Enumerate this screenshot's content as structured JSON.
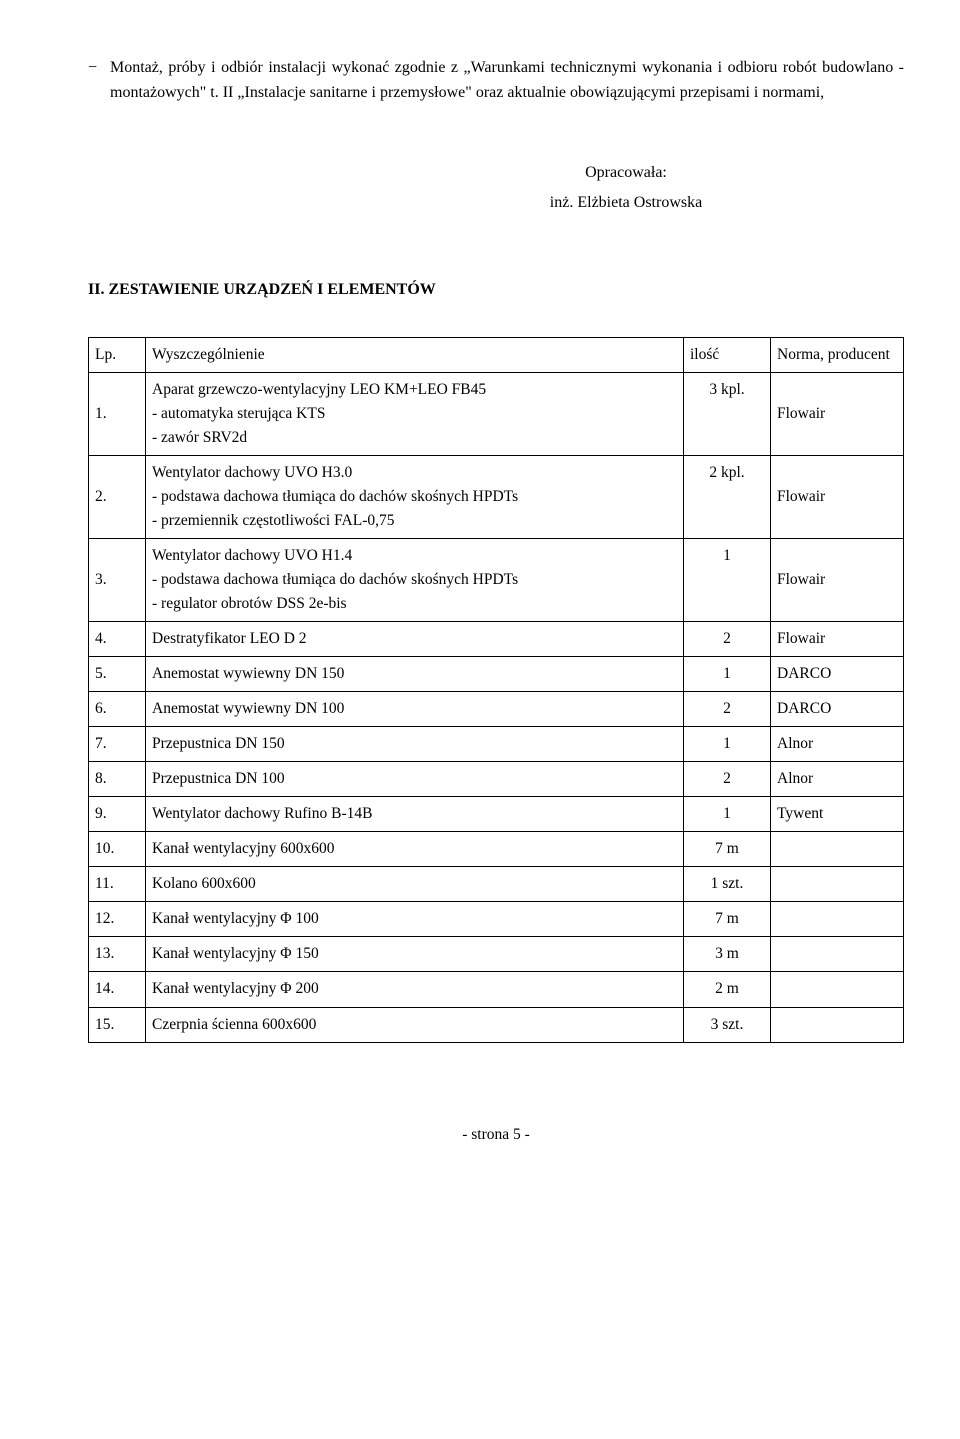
{
  "intro": {
    "text": "Montaż, próby i odbiór instalacji wykonać zgodnie z „Warunkami technicznymi wykonania i odbioru robót budowlano - montażowych\" t. II „Instalacje sanitarne i przemysłowe\" oraz aktualnie obowiązującymi przepisami i normami,"
  },
  "opracowala": {
    "label": "Opracowała:",
    "name": "inż. Elżbieta Ostrowska"
  },
  "section_title": "II. ZESTAWIENIE URZĄDZEŃ I ELEMENTÓW",
  "table": {
    "headers": {
      "lp": "Lp.",
      "wysz": "Wyszczególnienie",
      "ilosc": "ilość",
      "prod": "Norma,\nproducent"
    },
    "rows": [
      {
        "lp": "1.",
        "wysz": "Aparat grzewczo-wentylacyjny LEO KM+LEO FB45\n- automatyka sterująca KTS\n- zawór SRV2d",
        "ilosc": "3 kpl.",
        "prod": "\nFlowair"
      },
      {
        "lp": "2.",
        "wysz": "Wentylator  dachowy UVO H3.0\n- podstawa dachowa tłumiąca do dachów skośnych HPDTs\n- przemiennik częstotliwości FAL-0,75",
        "ilosc": "2 kpl.",
        "prod": "\nFlowair"
      },
      {
        "lp": "3.",
        "wysz": "Wentylator  dachowy UVO H1.4\n- podstawa dachowa tłumiąca do dachów skośnych HPDTs\n- regulator obrotów DSS 2e-bis",
        "ilosc": "1",
        "prod": "\nFlowair"
      },
      {
        "lp": "4.",
        "wysz": "Destratyfikator LEO D 2",
        "ilosc": "2",
        "prod": "Flowair",
        "ilosc_bottom": true
      },
      {
        "lp": "5.",
        "wysz": "Anemostat wywiewny DN 150",
        "ilosc": "1",
        "prod": "DARCO",
        "ilosc_bottom": true
      },
      {
        "lp": "6.",
        "wysz": "Anemostat wywiewny DN 100",
        "ilosc": "2",
        "prod": "DARCO",
        "ilosc_bottom": true
      },
      {
        "lp": "7.",
        "wysz": "Przepustnica DN 150",
        "ilosc": "1",
        "prod": "Alnor",
        "ilosc_bottom": true
      },
      {
        "lp": "8.",
        "wysz": "Przepustnica DN 100",
        "ilosc": "2",
        "prod": "Alnor",
        "ilosc_bottom": true
      },
      {
        "lp": "9.",
        "wysz": "Wentylator dachowy Rufino B-14B",
        "ilosc": "1",
        "prod": "Tywent",
        "ilosc_bottom": true
      },
      {
        "lp": "10.",
        "wysz": "Kanał wentylacyjny 600x600",
        "ilosc": "7 m",
        "prod": "",
        "ilosc_bottom": true
      },
      {
        "lp": "11.",
        "wysz": "Kolano 600x600",
        "ilosc": "1 szt.",
        "prod": "",
        "ilosc_bottom": true
      },
      {
        "lp": "12.",
        "wysz": "Kanał wentylacyjny Φ 100",
        "ilosc": "7 m",
        "prod": "",
        "ilosc_bottom": true
      },
      {
        "lp": "13.",
        "wysz": "Kanał wentylacyjny Φ 150",
        "ilosc": "3 m",
        "prod": "",
        "ilosc_bottom": true
      },
      {
        "lp": "14.",
        "wysz": "Kanał wentylacyjny Φ 200",
        "ilosc": "2 m",
        "prod": "",
        "ilosc_bottom": true
      },
      {
        "lp": "15.",
        "wysz": "Czerpnia ścienna 600x600",
        "ilosc": "3 szt.",
        "prod": "",
        "ilosc_bottom": true
      }
    ]
  },
  "footer": "- strona 5 -"
}
